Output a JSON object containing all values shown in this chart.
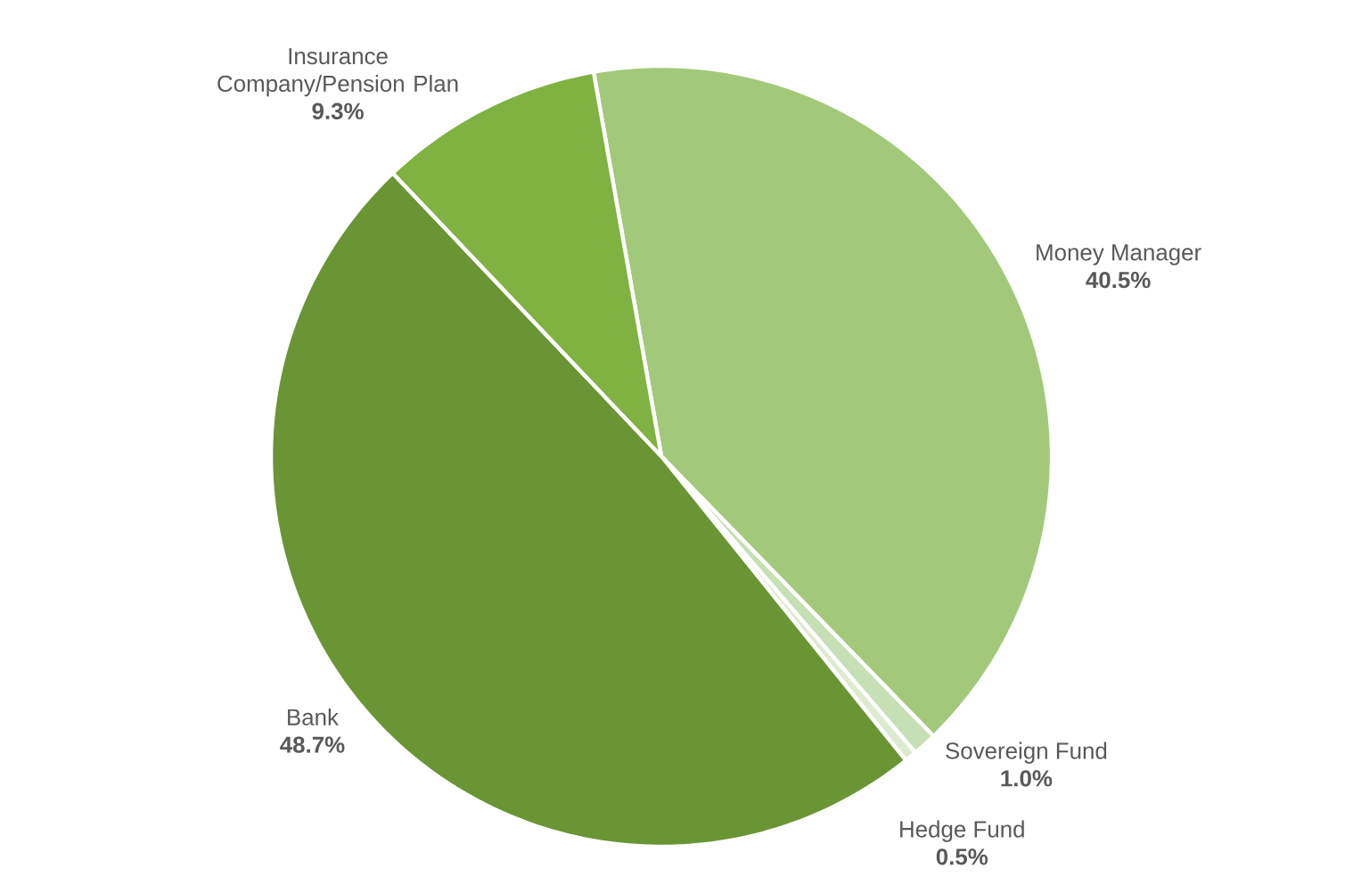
{
  "chart_data": {
    "type": "pie",
    "categories": [
      "Money Manager",
      "Sovereign Fund",
      "Hedge Fund",
      "Bank",
      "Insurance Company/Pension Plan"
    ],
    "values": [
      40.5,
      1.0,
      0.5,
      48.7,
      9.3
    ],
    "value_labels": [
      "40.5%",
      "1.0%",
      "0.5%",
      "48.7%",
      "9.3%"
    ],
    "colors": [
      "#a2c97a",
      "#c5e0b4",
      "#dcebd0",
      "#6a9535",
      "#7fb241"
    ]
  }
}
